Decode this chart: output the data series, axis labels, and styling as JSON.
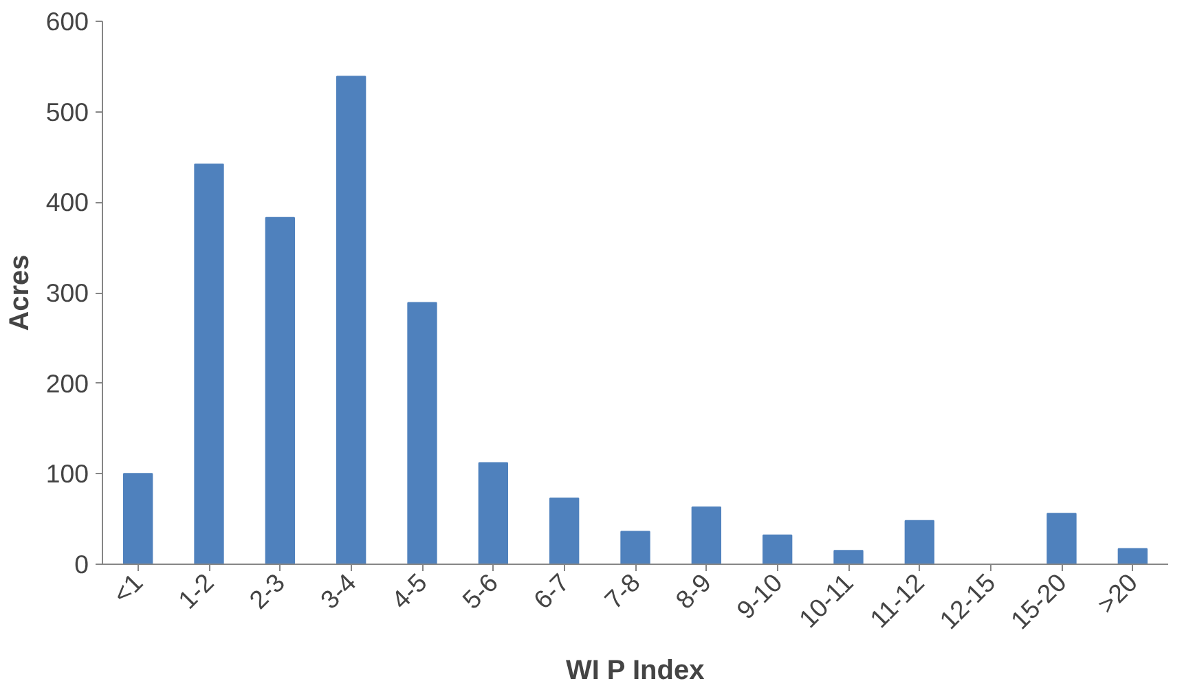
{
  "chart_data": {
    "type": "bar",
    "xlabel": "WI P Index",
    "ylabel": "Acres",
    "categories": [
      "<1",
      "1-2",
      "2-3",
      "3-4",
      "4-5",
      "5-6",
      "6-7",
      "7-8",
      "8-9",
      "9-10",
      "10-11",
      "11-12",
      "12-15",
      "15-20",
      ">20"
    ],
    "values": [
      100,
      442,
      383,
      539,
      289,
      112,
      73,
      36,
      63,
      32,
      15,
      48,
      0,
      56,
      17
    ],
    "color": "#4f81bd",
    "ylim": [
      0,
      600
    ],
    "yticks": [
      0,
      100,
      200,
      300,
      400,
      500,
      600
    ],
    "grid": false
  }
}
